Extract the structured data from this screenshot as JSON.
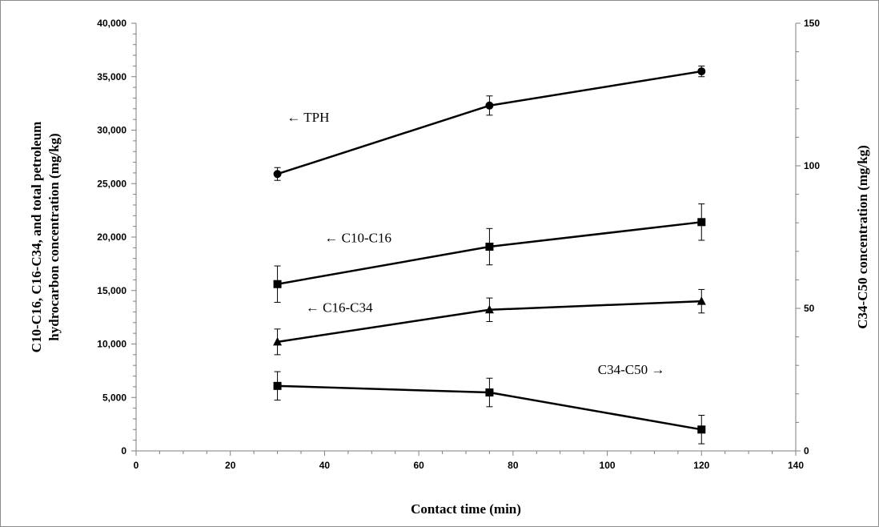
{
  "chart_data": {
    "type": "line",
    "x_axis": {
      "label": "Contact time (min)",
      "range": [
        0,
        140
      ],
      "ticks": [
        0,
        20,
        40,
        60,
        80,
        100,
        120,
        140
      ],
      "tick_labels": [
        "0",
        "20",
        "40",
        "60",
        "80",
        "100",
        "120",
        "140"
      ]
    },
    "y_left": {
      "label_line1": "C10-C16, C16-C34, and total petroleum",
      "label_line2": "hydrocarbon concentration (mg/kg)",
      "range": [
        0,
        40000
      ],
      "ticks": [
        0,
        5000,
        10000,
        15000,
        20000,
        25000,
        30000,
        35000,
        40000
      ],
      "tick_labels": [
        "0",
        "5,000",
        "10,000",
        "15,000",
        "20,000",
        "25,000",
        "30,000",
        "35,000",
        "40,000"
      ]
    },
    "y_right": {
      "label": "C34-C50 concentration (mg/kg)",
      "range": [
        0,
        150
      ],
      "ticks": [
        0,
        50,
        100,
        150
      ],
      "tick_labels": [
        "0",
        "50",
        "100",
        "150"
      ]
    },
    "x": [
      30,
      75,
      120
    ],
    "series": [
      {
        "name": "TPH",
        "axis": "left",
        "marker": "circle",
        "values": [
          25900,
          32300,
          35500
        ],
        "errors": [
          600,
          900,
          500
        ]
      },
      {
        "name": "C10-C16",
        "axis": "left",
        "marker": "square",
        "values": [
          15600,
          19100,
          21400
        ],
        "errors": [
          1700,
          1700,
          1700
        ]
      },
      {
        "name": "C16-C34",
        "axis": "left",
        "marker": "triangle",
        "values": [
          10200,
          13200,
          14000
        ],
        "errors": [
          1200,
          1100,
          1100
        ]
      },
      {
        "name": "C34-C50",
        "axis": "right",
        "marker": "square",
        "values": [
          22.8,
          20.5,
          7.5
        ],
        "errors": [
          5,
          5,
          5
        ]
      }
    ],
    "annotations": [
      {
        "text": "← TPH",
        "x": 32,
        "y": 30800,
        "axis": "left"
      },
      {
        "text": "← C10-C16",
        "x": 40,
        "y": 19500,
        "axis": "left"
      },
      {
        "text": "← C16-C34",
        "x": 36,
        "y": 13000,
        "axis": "left"
      },
      {
        "text": "C34-C50 →",
        "x": 98,
        "y": 27,
        "axis": "right"
      }
    ],
    "grid": false,
    "legend": "none"
  }
}
